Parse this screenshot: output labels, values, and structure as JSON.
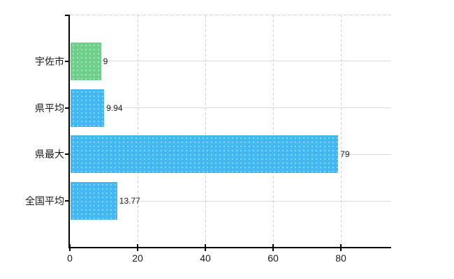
{
  "chart_data": {
    "type": "bar",
    "orientation": "horizontal",
    "title": "",
    "categories": [
      "宇佐市",
      "県平均",
      "県最大",
      "全国平均"
    ],
    "values": [
      9,
      9.94,
      79,
      13.77
    ],
    "value_labels": [
      "9",
      "9.94",
      "79",
      "13.77"
    ],
    "bar_colors": [
      "#6fd08c",
      "#42b9f2",
      "#42b9f2",
      "#42b9f2"
    ],
    "x_ticks": [
      0,
      20,
      40,
      60,
      80
    ],
    "x_tick_labels": [
      "0",
      "20",
      "40",
      "60",
      "80"
    ],
    "xlim": [
      0,
      94.8
    ],
    "grid": true,
    "legend": false
  },
  "colors": {
    "bar_green": "#6fd08c",
    "bar_blue": "#42b9f2",
    "h_gridline": "#d5ded5",
    "v_gridline": "#d8d0d9",
    "plot_top_border": "#d8d0d9",
    "axis": "#000000",
    "text": "#1a1a1a",
    "background": "#ffffff"
  }
}
